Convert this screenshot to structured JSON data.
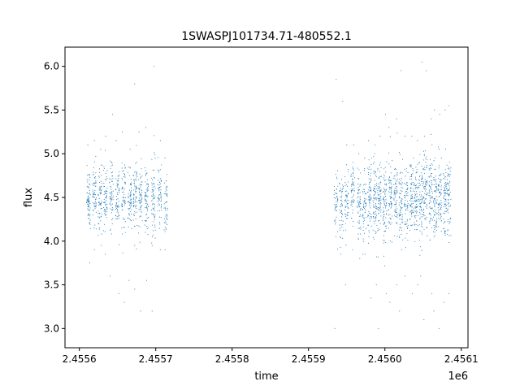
{
  "chart_data": {
    "type": "scatter",
    "title": "1SWASPJ101734.71-480552.1",
    "xlabel": "time",
    "ylabel": "flux",
    "x_offset_label": "1e6",
    "xlim": [
      2455581.2,
      2456108.8
    ],
    "ylim": [
      2.78,
      6.22
    ],
    "x_ticks": [
      2455600,
      2455700,
      2455800,
      2455900,
      2456000,
      2456100
    ],
    "x_tick_labels": [
      "2.4556",
      "2.4557",
      "2.4558",
      "2.4559",
      "2.4560",
      "2.4561"
    ],
    "y_ticks": [
      3.0,
      3.5,
      4.0,
      4.5,
      5.0,
      5.5,
      6.0
    ],
    "y_tick_labels": [
      "3.0",
      "3.5",
      "4.0",
      "4.5",
      "5.0",
      "5.5",
      "6.0"
    ],
    "grid": false,
    "marker_color": "#1f77b4",
    "series": [
      {
        "clusters": [
          {
            "x": 2455612.0,
            "center": 4.5,
            "count": 70,
            "spread": 0.18,
            "range": [
              3.75,
              5.1
            ]
          },
          {
            "x": 2455620.0,
            "center": 4.52,
            "count": 60,
            "spread": 0.18,
            "range": [
              3.9,
              5.15
            ]
          },
          {
            "x": 2455627.0,
            "center": 4.48,
            "count": 60,
            "spread": 0.18,
            "range": [
              3.95,
              5.05
            ]
          },
          {
            "x": 2455634.0,
            "center": 4.5,
            "count": 60,
            "spread": 0.18,
            "range": [
              3.85,
              5.2
            ]
          },
          {
            "x": 2455642.0,
            "center": 4.52,
            "count": 60,
            "spread": 0.19,
            "range": [
              3.6,
              5.45
            ]
          },
          {
            "x": 2455650.0,
            "center": 4.48,
            "count": 60,
            "spread": 0.18,
            "range": [
              3.4,
              5.15
            ]
          },
          {
            "x": 2455658.0,
            "center": 4.5,
            "count": 60,
            "spread": 0.19,
            "range": [
              3.3,
              5.25
            ]
          },
          {
            "x": 2455666.0,
            "center": 4.52,
            "count": 60,
            "spread": 0.18,
            "range": [
              3.55,
              5.05
            ]
          },
          {
            "x": 2455673.0,
            "center": 4.48,
            "count": 70,
            "spread": 0.2,
            "range": [
              3.45,
              5.8
            ]
          },
          {
            "x": 2455680.0,
            "center": 4.5,
            "count": 60,
            "spread": 0.18,
            "range": [
              3.2,
              5.25
            ]
          },
          {
            "x": 2455688.0,
            "center": 4.5,
            "count": 65,
            "spread": 0.19,
            "range": [
              3.55,
              5.3
            ]
          },
          {
            "x": 2455697.0,
            "center": 4.45,
            "count": 70,
            "spread": 0.24,
            "range": [
              3.2,
              6.0
            ]
          },
          {
            "x": 2455705.0,
            "center": 4.52,
            "count": 60,
            "spread": 0.18,
            "range": [
              3.9,
              5.15
            ]
          },
          {
            "x": 2455713.0,
            "center": 4.4,
            "count": 45,
            "spread": 0.17,
            "range": [
              3.9,
              4.95
            ]
          },
          {
            "x": 2455936.0,
            "center": 4.45,
            "count": 45,
            "spread": 0.19,
            "range": [
              3.0,
              5.85
            ]
          },
          {
            "x": 2455943.0,
            "center": 4.4,
            "count": 50,
            "spread": 0.19,
            "range": [
              3.85,
              5.6
            ]
          },
          {
            "x": 2455950.0,
            "center": 4.45,
            "count": 50,
            "spread": 0.18,
            "range": [
              3.5,
              5.1
            ]
          },
          {
            "x": 2455958.0,
            "center": 4.5,
            "count": 55,
            "spread": 0.18,
            "range": [
              3.9,
              5.1
            ]
          },
          {
            "x": 2455966.0,
            "center": 4.45,
            "count": 60,
            "spread": 0.19,
            "range": [
              3.8,
              5.0
            ]
          },
          {
            "x": 2455973.0,
            "center": 4.4,
            "count": 55,
            "spread": 0.18,
            "range": [
              3.85,
              4.95
            ]
          },
          {
            "x": 2455980.0,
            "center": 4.5,
            "count": 70,
            "spread": 0.2,
            "range": [
              3.35,
              5.15
            ]
          },
          {
            "x": 2455987.0,
            "center": 4.45,
            "count": 75,
            "spread": 0.21,
            "range": [
              3.5,
              5.1
            ]
          },
          {
            "x": 2455993.0,
            "center": 4.48,
            "count": 75,
            "spread": 0.21,
            "range": [
              3.0,
              5.2
            ]
          },
          {
            "x": 2456000.0,
            "center": 4.45,
            "count": 75,
            "spread": 0.22,
            "range": [
              3.4,
              5.45
            ]
          },
          {
            "x": 2456007.0,
            "center": 4.48,
            "count": 70,
            "spread": 0.22,
            "range": [
              3.3,
              5.3
            ]
          },
          {
            "x": 2456014.0,
            "center": 4.5,
            "count": 70,
            "spread": 0.22,
            "range": [
              3.5,
              5.4
            ]
          },
          {
            "x": 2456021.0,
            "center": 4.42,
            "count": 70,
            "spread": 0.22,
            "range": [
              3.2,
              5.95
            ]
          },
          {
            "x": 2456028.0,
            "center": 4.48,
            "count": 65,
            "spread": 0.21,
            "range": [
              3.6,
              5.2
            ]
          },
          {
            "x": 2456035.0,
            "center": 4.45,
            "count": 70,
            "spread": 0.22,
            "range": [
              3.4,
              5.2
            ]
          },
          {
            "x": 2456041.0,
            "center": 4.45,
            "count": 70,
            "spread": 0.22,
            "range": [
              3.5,
              5.15
            ]
          },
          {
            "x": 2456047.0,
            "center": 4.45,
            "count": 75,
            "spread": 0.24,
            "range": [
              3.6,
              6.05
            ]
          },
          {
            "x": 2456053.0,
            "center": 4.5,
            "count": 75,
            "spread": 0.25,
            "range": [
              3.1,
              5.95
            ]
          },
          {
            "x": 2456060.0,
            "center": 4.5,
            "count": 70,
            "spread": 0.23,
            "range": [
              3.4,
              5.4
            ]
          },
          {
            "x": 2456066.0,
            "center": 4.48,
            "count": 70,
            "spread": 0.23,
            "range": [
              3.2,
              5.5
            ]
          },
          {
            "x": 2456072.0,
            "center": 4.5,
            "count": 70,
            "spread": 0.23,
            "range": [
              3.0,
              5.45
            ]
          },
          {
            "x": 2456079.0,
            "center": 4.5,
            "count": 70,
            "spread": 0.22,
            "range": [
              3.3,
              5.5
            ]
          },
          {
            "x": 2456084.0,
            "center": 4.52,
            "count": 60,
            "spread": 0.21,
            "range": [
              3.4,
              5.55
            ]
          }
        ]
      }
    ]
  }
}
